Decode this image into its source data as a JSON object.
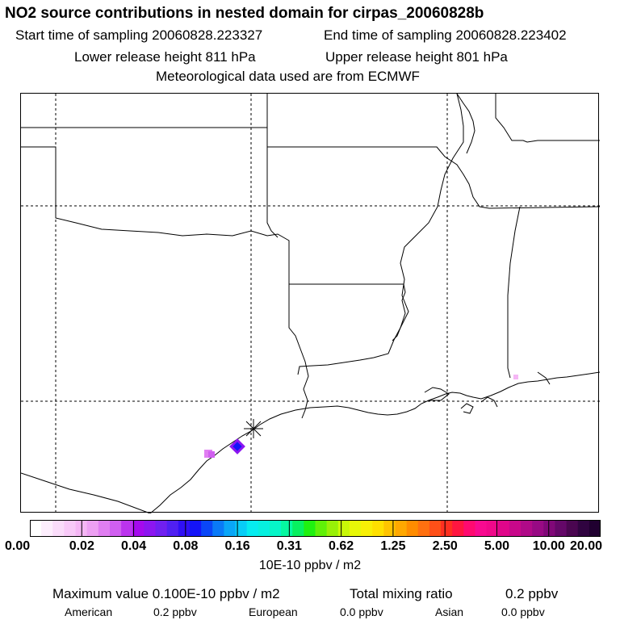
{
  "header": {
    "title": "NO2 source contributions in nested domain for cirpas_20060828b",
    "start_time": "Start time of sampling 20060828.223327",
    "end_time": "End time of sampling 20060828.223402",
    "lower_release": "Lower release height  811 hPa",
    "upper_release": "Upper release height  801 hPa",
    "met_data": "Meteorological data used are from ECMWF"
  },
  "legend": {
    "colors": [
      "#ffffff",
      "#fdeefd",
      "#fadcfa",
      "#f8c9f8",
      "#f5b6f5",
      "#eda0f3",
      "#e07ef1",
      "#d05ff0",
      "#bb34ee",
      "#a50aee",
      "#8c16f0",
      "#7020f0",
      "#5020f2",
      "#3010f5",
      "#1414f8",
      "#0a46f7",
      "#0a7af7",
      "#0aa6f7",
      "#08cdf7",
      "#06ecf0",
      "#06f0e0",
      "#06f5c8",
      "#06f8a0",
      "#08f060",
      "#20f010",
      "#60f008",
      "#98f008",
      "#c8f808",
      "#e8f808",
      "#f8f006",
      "#ffe000",
      "#ffc400",
      "#ffa800",
      "#ff8c00",
      "#ff7010",
      "#ff5018",
      "#ff3020",
      "#ff1640",
      "#ff0a70",
      "#f80a90",
      "#f0088a",
      "#e0068a",
      "#c8088a",
      "#b00a88",
      "#980a84",
      "#800878",
      "#640868",
      "#4a0650",
      "#300440",
      "#200030"
    ],
    "tick_labels": [
      "0.00",
      "0.02",
      "0.04",
      "0.08",
      "0.16",
      "0.31",
      "0.62",
      "1.25",
      "2.50",
      "5.00",
      "10.00",
      "20.00"
    ],
    "units": "10E-10 ppbv / m2"
  },
  "stats": {
    "max_label": "Maximum value  0.100E-10 ppbv / m2",
    "total_label": "Total mixing ratio",
    "total_value": "0.2 ppbv",
    "american_label": "American",
    "american_value": "0.2 ppbv",
    "european_label": "European",
    "european_value": "0.0 ppbv",
    "asian_label": "Asian",
    "asian_value": "0.0 ppbv"
  }
}
